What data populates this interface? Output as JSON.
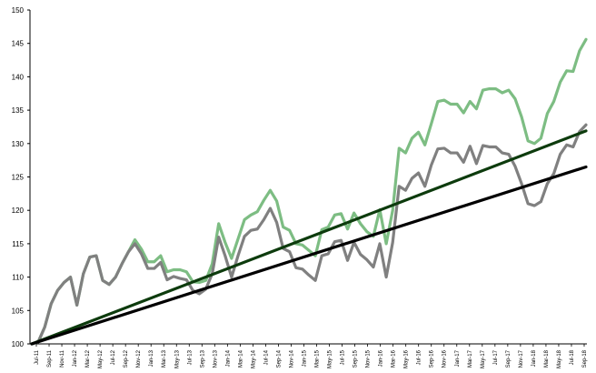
{
  "chart_data": {
    "type": "line",
    "title": "",
    "xlabel": "",
    "ylabel": "",
    "ylim": [
      100,
      150
    ],
    "yticks": [
      100,
      105,
      110,
      115,
      120,
      125,
      130,
      135,
      140,
      145,
      150
    ],
    "grid": false,
    "legend": "none",
    "x_start": "Jul-11",
    "x_end": "Sep-18",
    "x_tick_labels": [
      "Jul-11",
      "Sep-11",
      "Nov-11",
      "Jan-12",
      "Mar-12",
      "May-12",
      "Jul-12",
      "Sep-12",
      "Nov-12",
      "Jan-13",
      "Mar-13",
      "May-13",
      "Jul-13",
      "Sep-13",
      "Nov-13",
      "Jan-14",
      "Mar-14",
      "May-14",
      "Jul-14",
      "Sep-14",
      "Nov-14",
      "Jan-15",
      "Mar-15",
      "May-15",
      "Jul-15",
      "Sep-15",
      "Nov-15",
      "Jan-16",
      "Mar-16",
      "May-16",
      "Jul-16",
      "Sep-16",
      "Nov-16",
      "Jan-17",
      "Mar-17",
      "May-17",
      "Jul-17",
      "Sep-17",
      "Nov-17",
      "Jan-18",
      "Mar-18",
      "May-18",
      "Jul-18",
      "Sep-18"
    ],
    "series": [
      {
        "color": "#7dbd83",
        "values": [
          100,
          100.3,
          102.5,
          106,
          108,
          109.2,
          110,
          105.8,
          110.5,
          113,
          113.2,
          109.5,
          108.9,
          110,
          112,
          113.8,
          115.6,
          114.2,
          112.3,
          112.3,
          113.2,
          110.8,
          111.1,
          111.1,
          110.8,
          109.3,
          109.2,
          109.5,
          112,
          118,
          115.2,
          112.8,
          115.7,
          118.6,
          119.3,
          119.8,
          121.5,
          123,
          121.4,
          117.5,
          117,
          115,
          114.8,
          114,
          113.2,
          117.1,
          117.5,
          119.3,
          119.5,
          117.2,
          119.6,
          118,
          116.8,
          116.1,
          120.1,
          115,
          120,
          129.3,
          128.6,
          130.8,
          131.7,
          129.8,
          133,
          136.3,
          136.5,
          135.9,
          135.9,
          134.6,
          136.3,
          135.2,
          138,
          138.2,
          138.2,
          137.6,
          138,
          136.7,
          134,
          130.4,
          130,
          130.8,
          134.5,
          136.3,
          139.2,
          140.9,
          140.8,
          143.9,
          145.6
        ]
      },
      {
        "color": "#808080",
        "values": [
          100,
          100.3,
          102.5,
          106,
          108,
          109.2,
          110,
          105.8,
          110.5,
          113,
          113.2,
          109.5,
          108.9,
          110,
          112,
          113.8,
          115,
          113.5,
          111.3,
          111.3,
          112.2,
          109.6,
          110.1,
          109.8,
          109.6,
          108,
          107.5,
          108.2,
          110.5,
          116,
          113.2,
          110,
          113.2,
          116.1,
          117,
          117.2,
          118.6,
          120.3,
          118.2,
          114.3,
          113.8,
          111.4,
          111.2,
          110.3,
          109.5,
          113.2,
          113.5,
          115.3,
          115.5,
          112.5,
          115.2,
          113.4,
          112.6,
          111.5,
          115,
          110,
          115.2,
          123.6,
          123,
          124.8,
          125.6,
          123.6,
          126.8,
          129.2,
          129.3,
          128.6,
          128.6,
          127.2,
          129.6,
          127,
          129.7,
          129.5,
          129.5,
          128.6,
          128.4,
          126.6,
          124,
          121,
          120.7,
          121.3,
          124,
          125.5,
          128.4,
          129.8,
          129.5,
          131.8,
          132.8
        ]
      },
      {
        "color": "#0d3b0d",
        "values": [
          100,
          131.9
        ]
      },
      {
        "color": "#000000",
        "values": [
          100,
          126.5
        ]
      }
    ]
  }
}
